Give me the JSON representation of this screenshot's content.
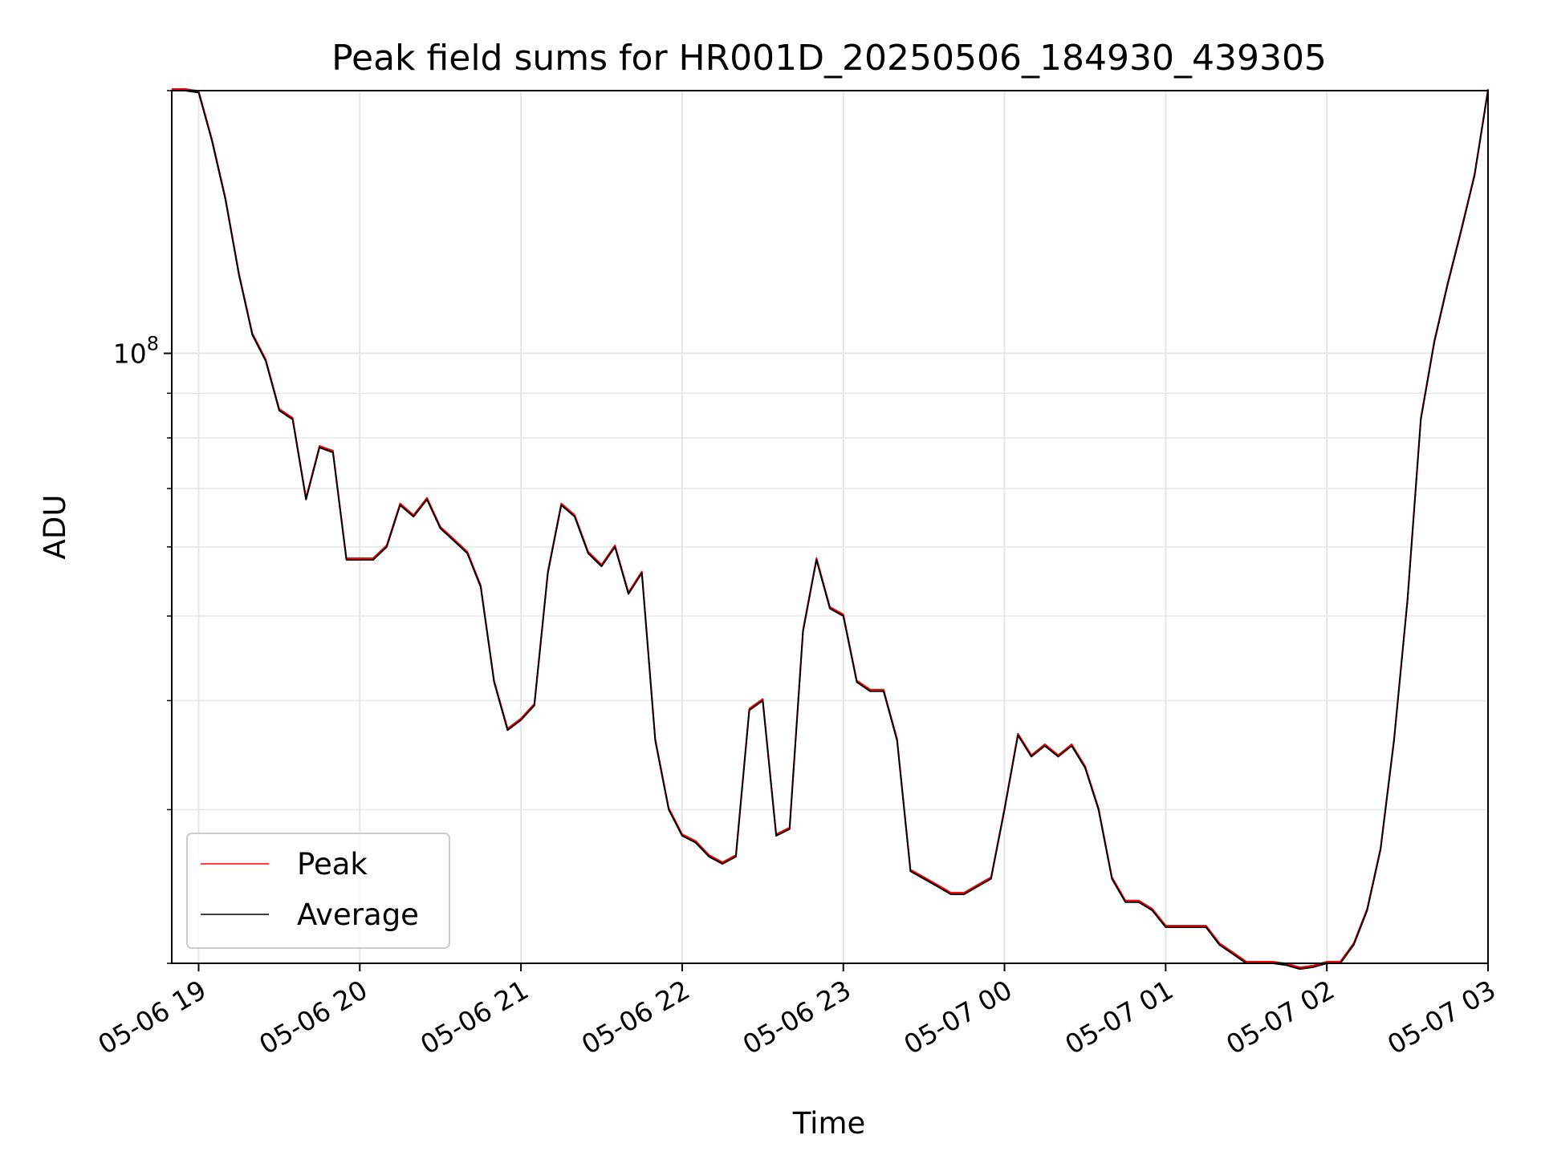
{
  "chart_data": {
    "type": "line",
    "title": "Peak field sums for HR001D_20250506_184930_439305",
    "xlabel": "Time",
    "ylabel": "ADU",
    "y_scale": "log",
    "ylim": [
      20000000,
      200000000
    ],
    "y_tick_labels": [
      {
        "value": 100000000,
        "label": "10^8"
      }
    ],
    "xlim": [
      "2025-05-06 18:50",
      "2025-05-07 03:00"
    ],
    "x_ticks": [
      {
        "t": "2025-05-06 19:00",
        "label": "05-06 19"
      },
      {
        "t": "2025-05-06 20:00",
        "label": "05-06 20"
      },
      {
        "t": "2025-05-06 21:00",
        "label": "05-06 21"
      },
      {
        "t": "2025-05-06 22:00",
        "label": "05-06 22"
      },
      {
        "t": "2025-05-06 23:00",
        "label": "05-06 23"
      },
      {
        "t": "2025-05-07 00:00",
        "label": "05-07 00"
      },
      {
        "t": "2025-05-07 01:00",
        "label": "05-07 01"
      },
      {
        "t": "2025-05-07 02:00",
        "label": "05-07 02"
      },
      {
        "t": "2025-05-07 03:00",
        "label": "05-07 03"
      }
    ],
    "grid": true,
    "legend_position": "lower-left",
    "series": [
      {
        "name": "Peak",
        "color": "#ff0000"
      },
      {
        "name": "Average",
        "color": "#000000"
      }
    ],
    "x": [
      "2025-05-06 18:50",
      "2025-05-06 18:55",
      "2025-05-06 19:00",
      "2025-05-06 19:05",
      "2025-05-06 19:10",
      "2025-05-06 19:15",
      "2025-05-06 19:20",
      "2025-05-06 19:25",
      "2025-05-06 19:30",
      "2025-05-06 19:35",
      "2025-05-06 19:40",
      "2025-05-06 19:45",
      "2025-05-06 19:50",
      "2025-05-06 19:55",
      "2025-05-06 20:00",
      "2025-05-06 20:05",
      "2025-05-06 20:10",
      "2025-05-06 20:15",
      "2025-05-06 20:20",
      "2025-05-06 20:25",
      "2025-05-06 20:30",
      "2025-05-06 20:35",
      "2025-05-06 20:40",
      "2025-05-06 20:45",
      "2025-05-06 20:50",
      "2025-05-06 20:55",
      "2025-05-06 21:00",
      "2025-05-06 21:05",
      "2025-05-06 21:10",
      "2025-05-06 21:15",
      "2025-05-06 21:20",
      "2025-05-06 21:25",
      "2025-05-06 21:30",
      "2025-05-06 21:35",
      "2025-05-06 21:40",
      "2025-05-06 21:45",
      "2025-05-06 21:50",
      "2025-05-06 21:55",
      "2025-05-06 22:00",
      "2025-05-06 22:05",
      "2025-05-06 22:10",
      "2025-05-06 22:15",
      "2025-05-06 22:20",
      "2025-05-06 22:25",
      "2025-05-06 22:30",
      "2025-05-06 22:35",
      "2025-05-06 22:40",
      "2025-05-06 22:45",
      "2025-05-06 22:50",
      "2025-05-06 22:55",
      "2025-05-06 23:00",
      "2025-05-06 23:05",
      "2025-05-06 23:10",
      "2025-05-06 23:15",
      "2025-05-06 23:20",
      "2025-05-06 23:25",
      "2025-05-06 23:30",
      "2025-05-06 23:35",
      "2025-05-06 23:40",
      "2025-05-06 23:45",
      "2025-05-06 23:50",
      "2025-05-06 23:55",
      "2025-05-07 00:00",
      "2025-05-07 00:05",
      "2025-05-07 00:10",
      "2025-05-07 00:15",
      "2025-05-07 00:20",
      "2025-05-07 00:25",
      "2025-05-07 00:30",
      "2025-05-07 00:35",
      "2025-05-07 00:40",
      "2025-05-07 00:45",
      "2025-05-07 00:50",
      "2025-05-07 00:55",
      "2025-05-07 01:00",
      "2025-05-07 01:05",
      "2025-05-07 01:10",
      "2025-05-07 01:15",
      "2025-05-07 01:20",
      "2025-05-07 01:25",
      "2025-05-07 01:30",
      "2025-05-07 01:35",
      "2025-05-07 01:40",
      "2025-05-07 01:45",
      "2025-05-07 01:50",
      "2025-05-07 01:55",
      "2025-05-07 02:00",
      "2025-05-07 02:05",
      "2025-05-07 02:10",
      "2025-05-07 02:15",
      "2025-05-07 02:20",
      "2025-05-07 02:25",
      "2025-05-07 02:30",
      "2025-05-07 02:35",
      "2025-05-07 02:40",
      "2025-05-07 02:45",
      "2025-05-07 02:50",
      "2025-05-07 02:55",
      "2025-05-07 03:00"
    ],
    "values": [
      200000000,
      200000000,
      199000000,
      175000000,
      150000000,
      123000000,
      105000000,
      98000000,
      86000000,
      84000000,
      68000000,
      78000000,
      77000000,
      58000000,
      58000000,
      58000000,
      60000000,
      67000000,
      65000000,
      68000000,
      63000000,
      61000000,
      59000000,
      54000000,
      42000000,
      37000000,
      38000000,
      39500000,
      56000000,
      67000000,
      65000000,
      59000000,
      57000000,
      60000000,
      53000000,
      56000000,
      36000000,
      30000000,
      28000000,
      27500000,
      26500000,
      26000000,
      26500000,
      39000000,
      40000000,
      28000000,
      28500000,
      48000000,
      58000000,
      51000000,
      50000000,
      42000000,
      41000000,
      41000000,
      36000000,
      25500000,
      25000000,
      24500000,
      24000000,
      24000000,
      24500000,
      25000000,
      30000000,
      36500000,
      34500000,
      35500000,
      34500000,
      35500000,
      33500000,
      30000000,
      25000000,
      23500000,
      23500000,
      23000000,
      22000000,
      22000000,
      22000000,
      22000000,
      21000000,
      20500000,
      20000000,
      20000000,
      20000000,
      19900000,
      19700000,
      19800000,
      20000000,
      20000000,
      21000000,
      23000000,
      27000000,
      36000000,
      52000000,
      84000000,
      103000000,
      120000000,
      138000000,
      160000000,
      200000000
    ]
  }
}
